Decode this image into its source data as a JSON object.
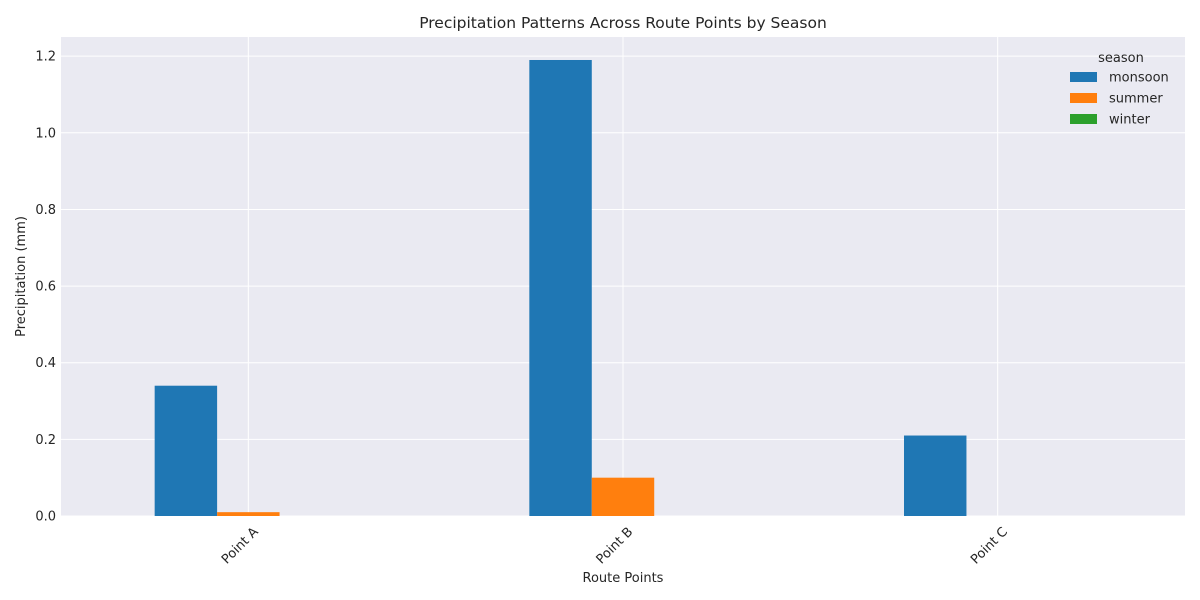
{
  "chart_data": {
    "type": "bar",
    "title": "Precipitation Patterns Across Route Points by Season",
    "xlabel": "Route Points",
    "ylabel": "Precipitation (mm)",
    "categories": [
      "Point A",
      "Point B",
      "Point C"
    ],
    "series": [
      {
        "name": "monsoon",
        "values": [
          0.34,
          1.19,
          0.21
        ],
        "color": "#1f77b4"
      },
      {
        "name": "summer",
        "values": [
          0.01,
          0.1,
          0.0
        ],
        "color": "#ff7f0e"
      },
      {
        "name": "winter",
        "values": [
          0.0,
          0.0,
          0.0
        ],
        "color": "#2ca02c"
      }
    ],
    "ylim": [
      0,
      1.25
    ],
    "yticks": [
      "0.0",
      "0.2",
      "0.4",
      "0.6",
      "0.8",
      "1.0",
      "1.2"
    ],
    "legend": {
      "title": "season",
      "placement": "top-right"
    },
    "grid": true,
    "colors": {
      "background": "#eaeaf2",
      "grid": "#ffffff",
      "text": "#262626"
    }
  }
}
